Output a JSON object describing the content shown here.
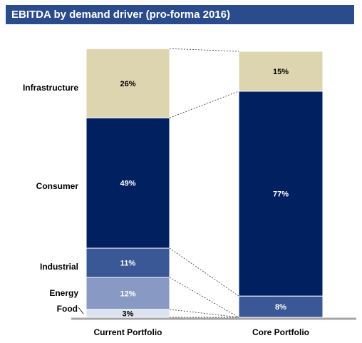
{
  "title": "EBITDA by demand driver (pro-forma 2016)",
  "colors": {
    "title_bg": "#2b4c8c",
    "infrastructure": "#ddd4b0",
    "consumer": "#002060",
    "industrial": "#3b5896",
    "energy": "#8899c4",
    "food": "#dbe2f0",
    "axis": "#a6a6a6"
  },
  "chart_data": {
    "type": "bar",
    "stacked": true,
    "categories": [
      "Current Portfolio",
      "Core Portfolio"
    ],
    "series": [
      {
        "name": "Food",
        "values": [
          3,
          null
        ],
        "labels": [
          "3%",
          ""
        ]
      },
      {
        "name": "Energy",
        "values": [
          12,
          null
        ],
        "labels": [
          "12%",
          ""
        ]
      },
      {
        "name": "Industrial",
        "values": [
          11,
          8
        ],
        "labels": [
          "11%",
          "8%"
        ]
      },
      {
        "name": "Consumer",
        "values": [
          49,
          77
        ],
        "labels": [
          "49%",
          "77%"
        ]
      },
      {
        "name": "Infrastructure",
        "values": [
          26,
          15
        ],
        "labels": [
          "26%",
          "15%"
        ]
      }
    ],
    "ylim": [
      0,
      100
    ],
    "legend": "left"
  }
}
